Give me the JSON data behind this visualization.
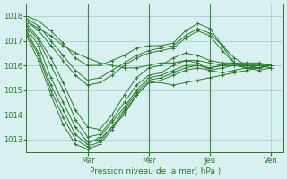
{
  "bg_color": "#d8f0f0",
  "plot_bg_color": "#d8f0f0",
  "grid_color": "#a0c8c8",
  "line_color": "#2a7a2a",
  "marker_color": "#2a7a2a",
  "xlabel": "Pression niveau de la mer( hPa )",
  "ylim": [
    1012.5,
    1018.5
  ],
  "yticks": [
    1013,
    1014,
    1015,
    1016,
    1017,
    1018
  ],
  "day_labels": [
    "Mar",
    "Mer",
    "Jeu",
    "Ven"
  ],
  "day_positions": [
    0.25,
    0.5,
    0.75,
    1.0
  ],
  "series": [
    [
      1017.8,
      1017.5,
      1017.2,
      1016.8,
      1016.5,
      1016.3,
      1016.1,
      1016.0,
      1015.9,
      1015.9,
      1016.0,
      1016.1,
      1016.1,
      1016.2,
      1016.2,
      1016.1,
      1016.0,
      1016.0,
      1015.9,
      1015.9,
      1016.0
    ],
    [
      1017.5,
      1016.8,
      1015.5,
      1014.5,
      1013.5,
      1012.9,
      1013.0,
      1013.5,
      1014.0,
      1014.8,
      1015.3,
      1015.3,
      1015.2,
      1015.3,
      1015.4,
      1015.5,
      1015.6,
      1015.7,
      1015.8,
      1015.9,
      1016.0
    ],
    [
      1017.6,
      1017.0,
      1016.0,
      1015.0,
      1013.8,
      1013.1,
      1013.2,
      1013.8,
      1014.5,
      1015.2,
      1015.6,
      1015.7,
      1016.0,
      1016.2,
      1016.1,
      1015.8,
      1015.7,
      1015.8,
      1015.9,
      1016.0,
      1016.0
    ],
    [
      1017.4,
      1016.5,
      1015.2,
      1014.2,
      1013.2,
      1012.8,
      1013.1,
      1013.7,
      1014.3,
      1015.0,
      1015.5,
      1015.6,
      1015.8,
      1016.0,
      1016.0,
      1015.9,
      1016.0,
      1016.1,
      1016.1,
      1016.1,
      1016.0
    ],
    [
      1017.7,
      1017.1,
      1016.3,
      1015.3,
      1014.2,
      1013.5,
      1013.4,
      1014.0,
      1014.8,
      1015.5,
      1015.9,
      1016.0,
      1016.3,
      1016.5,
      1016.4,
      1016.2,
      1016.1,
      1016.1,
      1016.0,
      1016.0,
      1016.0
    ],
    [
      1017.3,
      1016.4,
      1015.0,
      1013.9,
      1013.0,
      1012.7,
      1012.9,
      1013.5,
      1014.2,
      1014.9,
      1015.4,
      1015.5,
      1015.7,
      1015.9,
      1016.0,
      1015.9,
      1016.0,
      1016.0,
      1016.0,
      1016.0,
      1016.0
    ],
    [
      1017.9,
      1017.6,
      1017.0,
      1016.4,
      1015.8,
      1015.4,
      1015.5,
      1015.8,
      1016.1,
      1016.4,
      1016.6,
      1016.7,
      1016.8,
      1017.2,
      1017.5,
      1017.3,
      1016.8,
      1016.3,
      1016.0,
      1015.9,
      1016.0
    ],
    [
      1017.2,
      1016.2,
      1014.8,
      1013.6,
      1012.8,
      1012.6,
      1012.8,
      1013.4,
      1014.1,
      1014.8,
      1015.3,
      1015.4,
      1015.6,
      1015.8,
      1015.9,
      1015.8,
      1015.9,
      1016.0,
      1016.0,
      1016.0,
      1015.9
    ],
    [
      1017.8,
      1017.4,
      1016.8,
      1016.2,
      1015.6,
      1015.2,
      1015.3,
      1015.6,
      1016.0,
      1016.3,
      1016.5,
      1016.6,
      1016.7,
      1017.1,
      1017.4,
      1017.2,
      1016.6,
      1016.1,
      1015.9,
      1015.8,
      1015.9
    ],
    [
      1018.0,
      1017.8,
      1017.4,
      1016.9,
      1016.3,
      1016.0,
      1016.0,
      1016.2,
      1016.4,
      1016.7,
      1016.8,
      1016.8,
      1016.9,
      1017.4,
      1017.7,
      1017.5,
      1016.8,
      1016.1,
      1015.9,
      1015.9,
      1016.0
    ]
  ]
}
